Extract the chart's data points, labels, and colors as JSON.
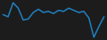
{
  "values": [
    0.3,
    0.1,
    1.4,
    0.9,
    -0.2,
    -0.1,
    0.5,
    0.8,
    0.5,
    0.6,
    0.4,
    0.7,
    0.6,
    0.9,
    0.7,
    0.5,
    0.6,
    0.0,
    -1.8,
    -0.8,
    0.1
  ],
  "line_color": "#2080c0",
  "line_width": 1.1,
  "background_color": "#1c1c1c"
}
